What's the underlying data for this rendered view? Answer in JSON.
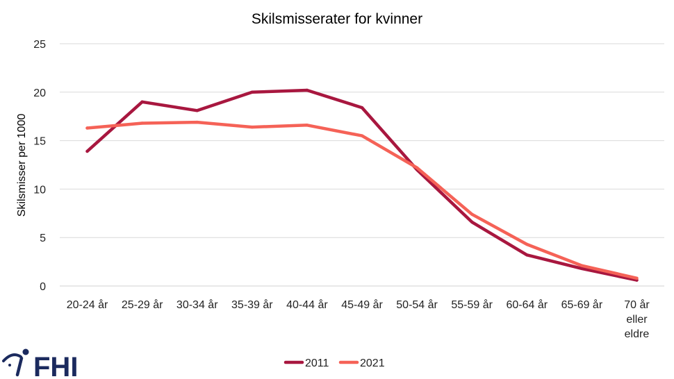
{
  "chart_data": {
    "type": "line",
    "title": "Skilsmisserater for kvinner",
    "ylabel": "Skilsmisser per 1000",
    "xlabel": "",
    "ylim": [
      0,
      25
    ],
    "yticks": [
      0,
      5,
      10,
      15,
      20,
      25
    ],
    "grid": true,
    "legend_position": "bottom",
    "categories": [
      [
        "20-24 år"
      ],
      [
        "25-29 år"
      ],
      [
        "30-34 år"
      ],
      [
        "35-39 år"
      ],
      [
        "40-44 år"
      ],
      [
        "45-49 år"
      ],
      [
        "50-54 år"
      ],
      [
        "55-59 år"
      ],
      [
        "60-64 år"
      ],
      [
        "65-69 år"
      ],
      [
        "70 år",
        "eller",
        "eldre"
      ]
    ],
    "series": [
      {
        "name": "2011",
        "color": "#a8173f",
        "values": [
          13.9,
          19.0,
          18.1,
          20.0,
          20.2,
          18.4,
          12.0,
          6.6,
          3.2,
          1.8,
          0.6
        ]
      },
      {
        "name": "2021",
        "color": "#f56257",
        "values": [
          16.3,
          16.8,
          16.9,
          16.4,
          16.6,
          15.5,
          12.2,
          7.4,
          4.3,
          2.1,
          0.8
        ]
      }
    ]
  },
  "logo": {
    "text": "FHI",
    "color": "#1b2a5e"
  }
}
